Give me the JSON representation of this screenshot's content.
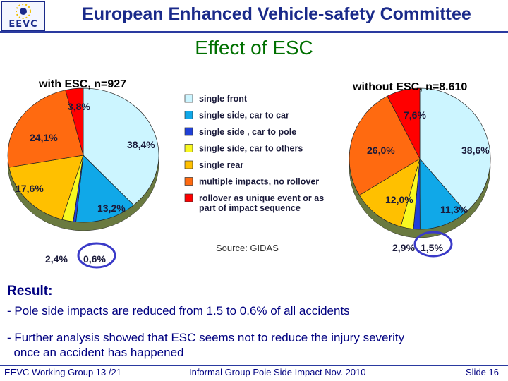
{
  "header": {
    "title": "European Enhanced Vehicle-safety Committee",
    "logo_text": "EEVC",
    "brand_color": "#1a2a8a"
  },
  "slide_title": "Effect of ESC",
  "chart_data": {
    "type": "pie",
    "legend": [
      {
        "label": "single front",
        "color": "#ccf5ff"
      },
      {
        "label": "single side, car to car",
        "color": "#10a8e8"
      },
      {
        "label": "single side , car to pole",
        "color": "#2040d8"
      },
      {
        "label": "single side, car to others",
        "color": "#f8f820"
      },
      {
        "label": "single rear",
        "color": "#ffc000"
      },
      {
        "label": "multiple impacts, no rollover",
        "color": "#ff6a10"
      },
      {
        "label": "rollover as unique event or as part of impact sequence",
        "color": "#ff0000"
      }
    ],
    "legend_label_lines": [
      [
        "single front"
      ],
      [
        "single side, car to car"
      ],
      [
        "single side , car to pole"
      ],
      [
        "single side, car to others"
      ],
      [
        "single rear"
      ],
      [
        "multiple impacts, no rollover"
      ],
      [
        "rollover as unique event or as",
        "part of impact sequence"
      ]
    ],
    "source": "Source: GIDAS",
    "charts": [
      {
        "title": "with ESC, n=927",
        "categories": [
          "single front",
          "single side, car to car",
          "single side , car to pole",
          "single side, car to others",
          "single rear",
          "multiple impacts, no rollover",
          "rollover as unique event or as part of impact sequence"
        ],
        "values": [
          38.4,
          13.2,
          0.6,
          2.4,
          17.6,
          24.1,
          3.8
        ],
        "value_labels": [
          "38,4%",
          "13,2%",
          "0,6%",
          "2,4%",
          "17,6%",
          "24,1%",
          "3,8%"
        ],
        "highlighted_label": "0,6%"
      },
      {
        "title": "without ESC, n=8.610",
        "categories": [
          "single front",
          "single side, car to car",
          "single side , car to pole",
          "single side, car to others",
          "single rear",
          "multiple impacts, no rollover",
          "rollover as unique event or as part of impact sequence"
        ],
        "values": [
          38.6,
          11.3,
          1.5,
          2.9,
          12.0,
          26.0,
          7.6
        ],
        "value_labels": [
          "38,6%",
          "11,3%",
          "1,5%",
          "2,9%",
          "12,0%",
          "26,0%",
          "7,6%"
        ],
        "highlighted_label": "1,5%"
      }
    ]
  },
  "result": {
    "heading": "Result:",
    "bullets": [
      {
        "lines": [
          "- Pole side impacts are reduced from 1.5 to 0.6% of all accidents"
        ]
      },
      {
        "lines": [
          "- Further analysis showed that ESC seems not to reduce the injury severity",
          "  once an accident has happened"
        ]
      }
    ]
  },
  "footer": {
    "left": "EEVC Working Group 13 /21",
    "center": "Informal Group Pole Side Impact Nov. 2010",
    "right": "Slide 16"
  }
}
